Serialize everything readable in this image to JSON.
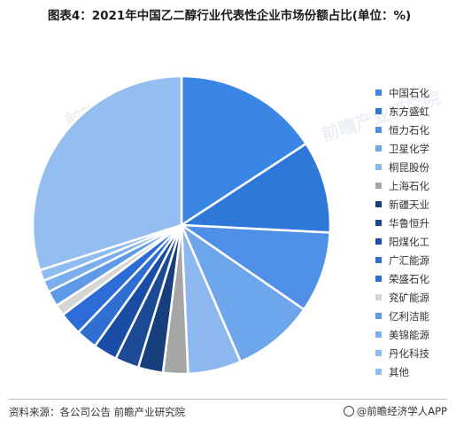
{
  "title": "图表4：2021年中国乙二醇行业代表性企业市场份额占比(单位：%)",
  "source": "资料来源：各公司公告 前瞻产业研究院",
  "brand": "@前瞻经济学人APP",
  "watermark": "前瞻产业研究院",
  "chart_data": {
    "type": "pie",
    "title": "图表4：2021年中国乙二醇行业代表性企业市场份额占比(单位：%)",
    "legend_position": "right",
    "start_angle": "12 o'clock, clockwise",
    "categories": [
      "中国石化",
      "东方盛虹",
      "恒力石化",
      "卫星化学",
      "桐昆股份",
      "上海石化",
      "新疆天业",
      "华鲁恒升",
      "阳煤化工",
      "广汇能源",
      "荣盛石化",
      "兖矿能源",
      "亿利洁能",
      "美锦能源",
      "丹化科技",
      "其他"
    ],
    "values": [
      15.8,
      10.0,
      8.8,
      8.9,
      5.8,
      2.7,
      2.7,
      2.6,
      2.6,
      2.3,
      2.5,
      1.2,
      1.7,
      1.3,
      1.2,
      29.9
    ],
    "colors": [
      "#3a86e4",
      "#2e78da",
      "#4f8fe6",
      "#6ea6ec",
      "#8db8ef",
      "#a6a6a6",
      "#173f7d",
      "#1c4a94",
      "#1a4da6",
      "#2f6fd1",
      "#2c6cd6",
      "#d6d6d6",
      "#5f9ae8",
      "#7aaeee",
      "#8fbcf0",
      "#94bdf0"
    ]
  }
}
